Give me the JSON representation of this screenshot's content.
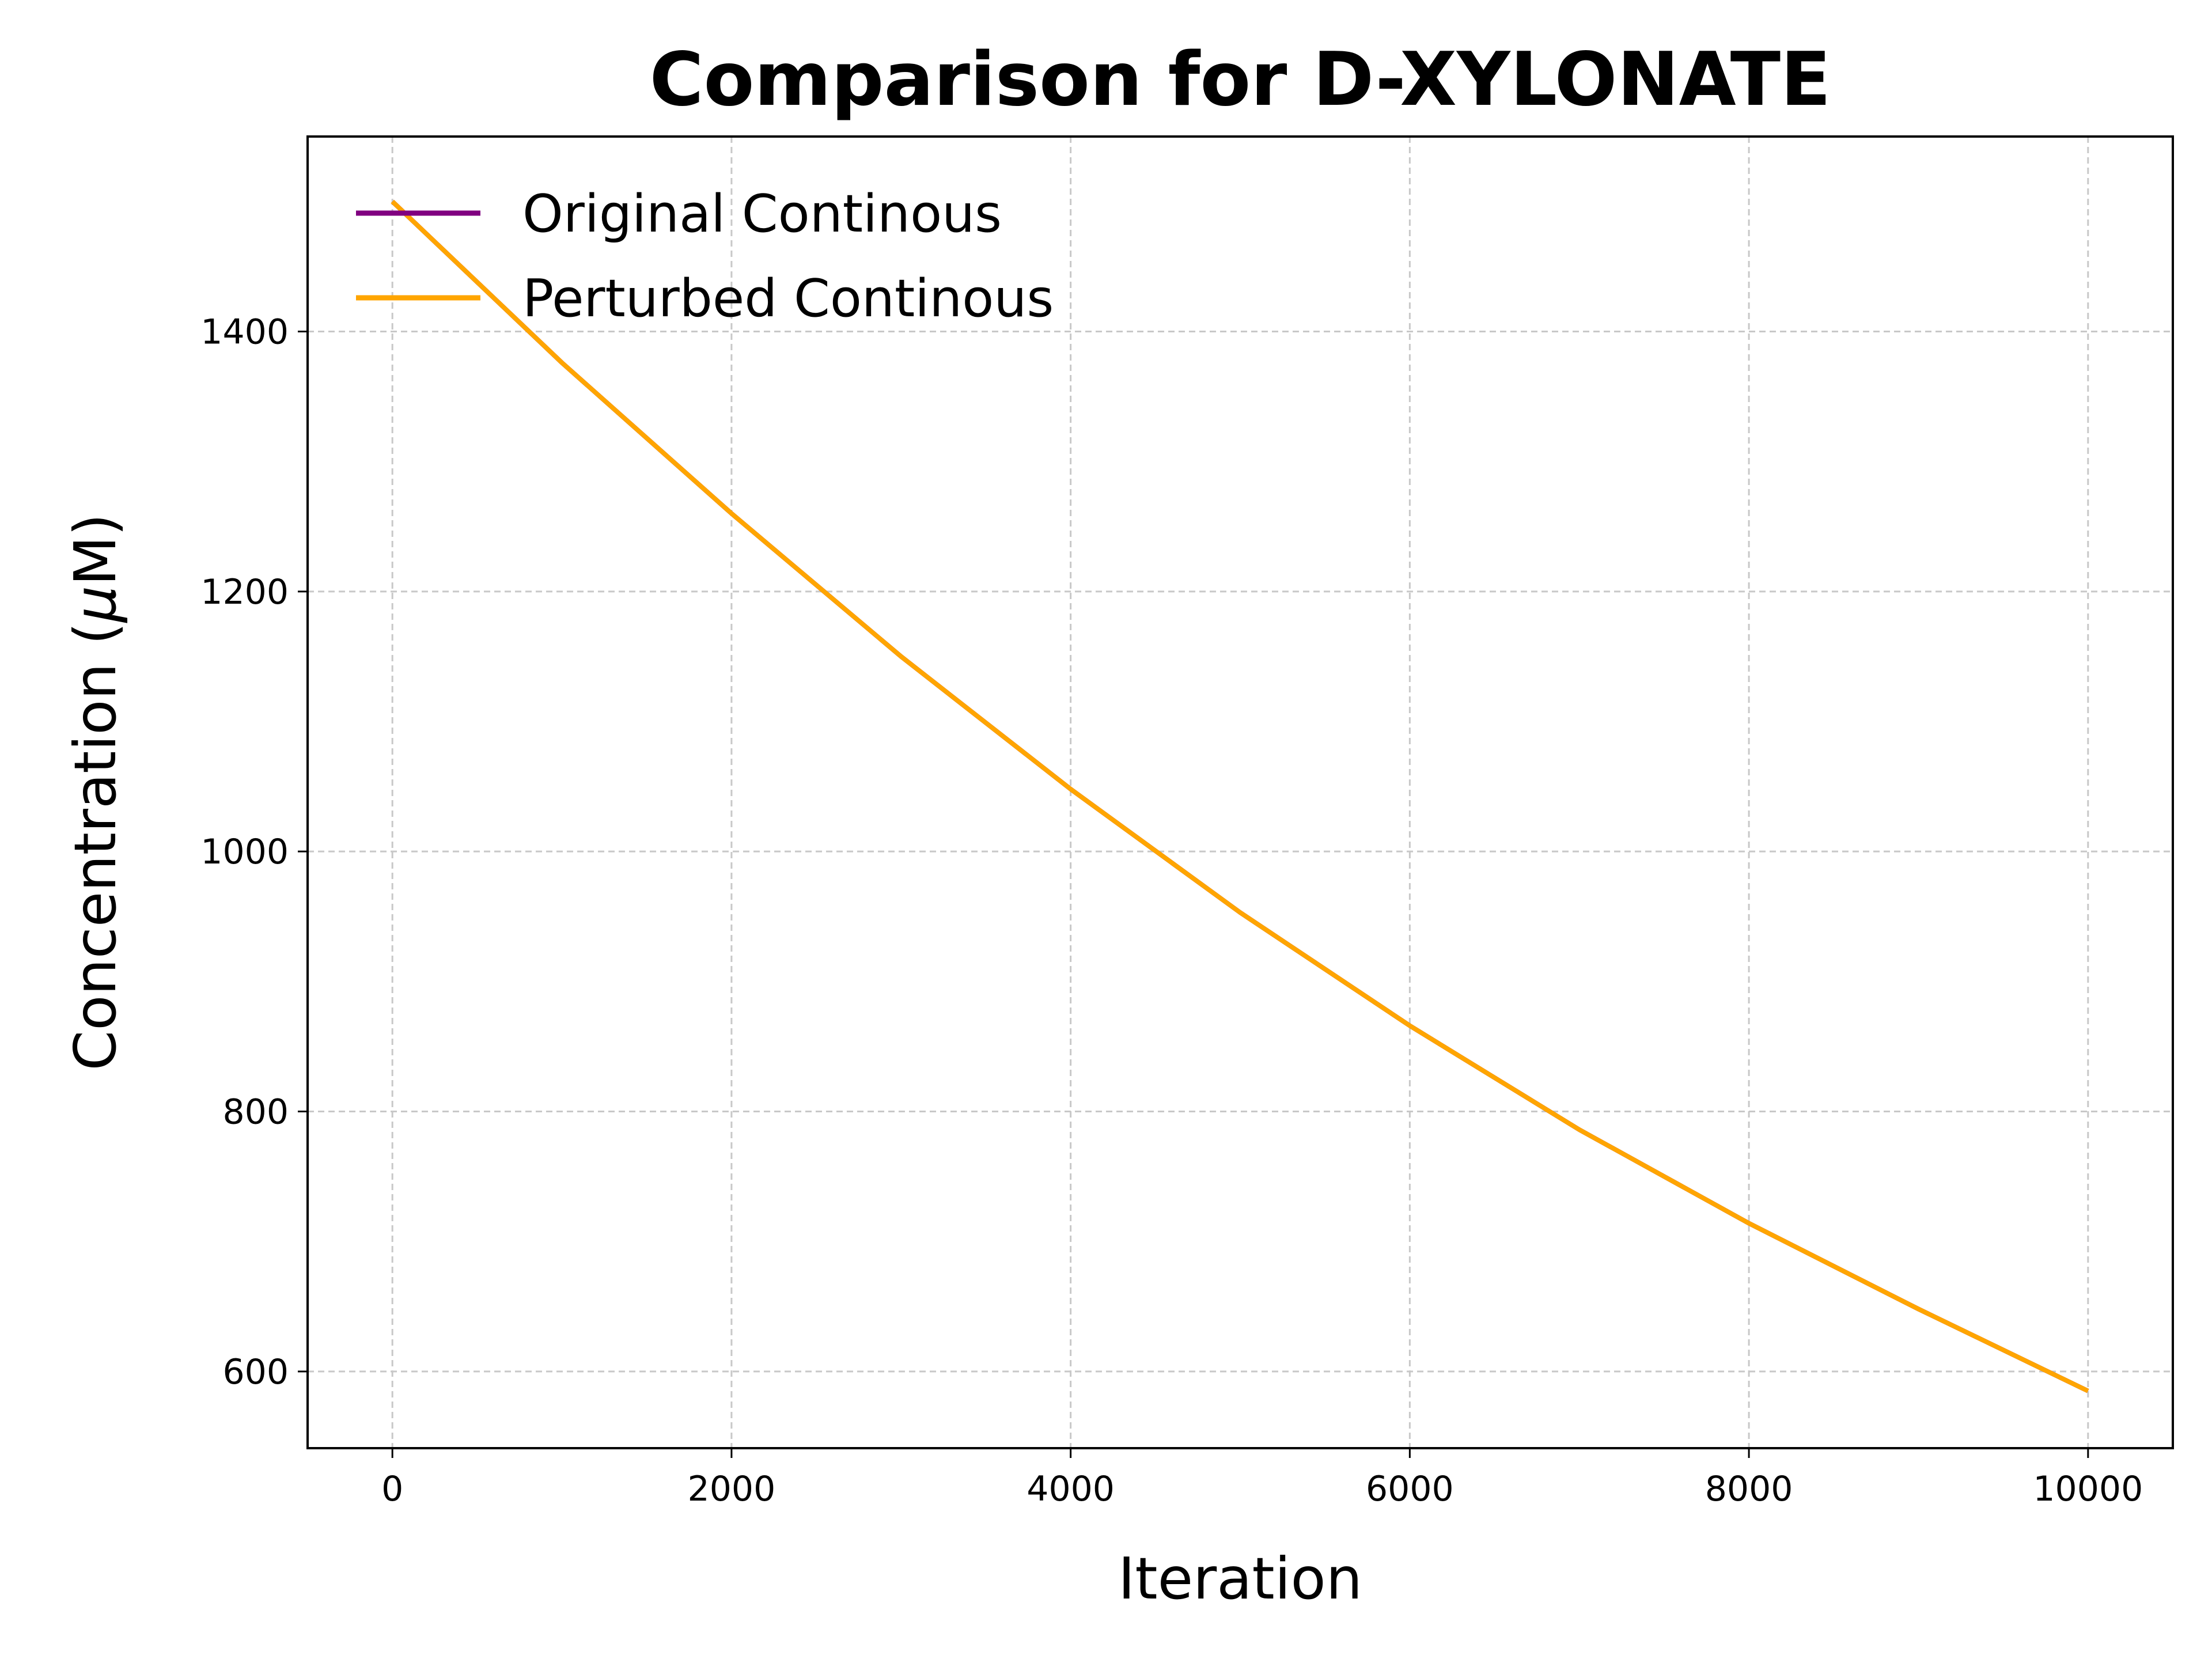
{
  "chart_data": {
    "type": "line",
    "title": "Comparison for D-XYLONATE",
    "xlabel": "Iteration",
    "ylabel_prefix": "Concentration (",
    "ylabel_mu": "μ",
    "ylabel_suffix": "M)",
    "xlim": [
      -500,
      10500
    ],
    "ylim": [
      541,
      1550
    ],
    "x_ticks": [
      0,
      2000,
      4000,
      6000,
      8000,
      10000
    ],
    "y_ticks": [
      600,
      800,
      1000,
      1200,
      1400
    ],
    "grid": true,
    "legend_position": "upper left",
    "series": [
      {
        "name": "Original Continous",
        "color": "#800080",
        "x": [
          0,
          1000,
          2000,
          3000,
          4000,
          5000,
          6000,
          7000,
          8000,
          9000,
          10000
        ],
        "y": [
          1500,
          1376,
          1260,
          1150,
          1048,
          953,
          866,
          786,
          714,
          648,
          585
        ]
      },
      {
        "name": "Perturbed Continous",
        "color": "#FFA500",
        "x": [
          0,
          1000,
          2000,
          3000,
          4000,
          5000,
          6000,
          7000,
          8000,
          9000,
          10000
        ],
        "y": [
          1500,
          1376,
          1260,
          1150,
          1048,
          953,
          866,
          786,
          714,
          648,
          585
        ]
      }
    ]
  }
}
